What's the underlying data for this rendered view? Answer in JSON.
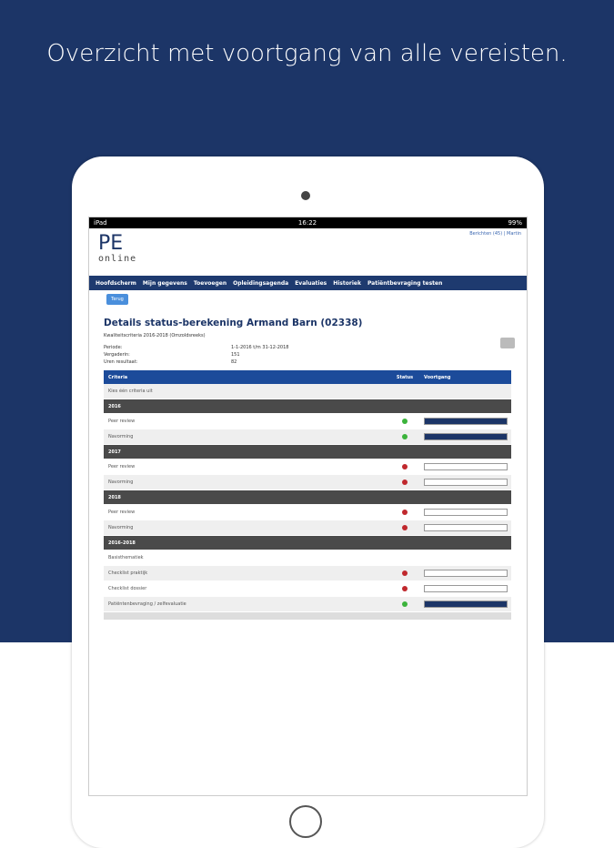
{
  "headline": "Overzicht met voortgang van alle vereisten.",
  "statusbar": {
    "left": "iPad",
    "time": "16:22",
    "battery": "99%"
  },
  "logo": {
    "main": "PE",
    "sub": "online"
  },
  "toplinks": {
    "messages": "Berichten (45)",
    "user": "Martin"
  },
  "nav": [
    "Hoofdscherm",
    "Mijn gegevens",
    "Toevoegen",
    "Opleidingsagenda",
    "Evaluaties",
    "Historiek",
    "Patiëntbevraging testen"
  ],
  "back_label": "Terug",
  "title": "Details status-berekening Armand Barn (02338)",
  "subtitle": "Kwaliteitscriteria 2016-2018 (Omzoldsreeks)",
  "info": [
    {
      "label": "Periode:",
      "value": "1-1-2016 t/m 31-12-2018"
    },
    {
      "label": "Vergaderin:",
      "value": "151"
    },
    {
      "label": "Uren resultaat:",
      "value": "82"
    }
  ],
  "table": {
    "headers": {
      "criteria": "Criteria",
      "status": "Status",
      "progress": "Voortgang"
    },
    "hint": "Kies één criteria uit",
    "rows": [
      {
        "type": "year",
        "label": "2016"
      },
      {
        "type": "item",
        "label": "Peer review",
        "status": "ok",
        "progress": 100
      },
      {
        "type": "item",
        "label": "Navorming",
        "status": "ok",
        "progress": 100
      },
      {
        "type": "year",
        "label": "2017"
      },
      {
        "type": "item",
        "label": "Peer review",
        "status": "fail",
        "progress": 0
      },
      {
        "type": "item",
        "label": "Navorming",
        "status": "fail",
        "progress": 0
      },
      {
        "type": "year",
        "label": "2018"
      },
      {
        "type": "item",
        "label": "Peer review",
        "status": "fail",
        "progress": 0
      },
      {
        "type": "item",
        "label": "Navorming",
        "status": "fail",
        "progress": 0
      },
      {
        "type": "year",
        "label": "2016-2018"
      },
      {
        "type": "item",
        "label": "Basisthematiek",
        "status": null,
        "progress": null
      },
      {
        "type": "item",
        "label": "Checklist praktijk",
        "status": "fail",
        "progress": 0
      },
      {
        "type": "item",
        "label": "Checklist dossier",
        "status": "fail",
        "progress": 0
      },
      {
        "type": "item",
        "label": "Patiëntenbevraging / zelfevaluatie",
        "status": "ok",
        "progress": 100
      }
    ]
  },
  "colors": {
    "ok": "#3bb33b",
    "fail": "#c0282d",
    "brand": "#1c3567"
  }
}
